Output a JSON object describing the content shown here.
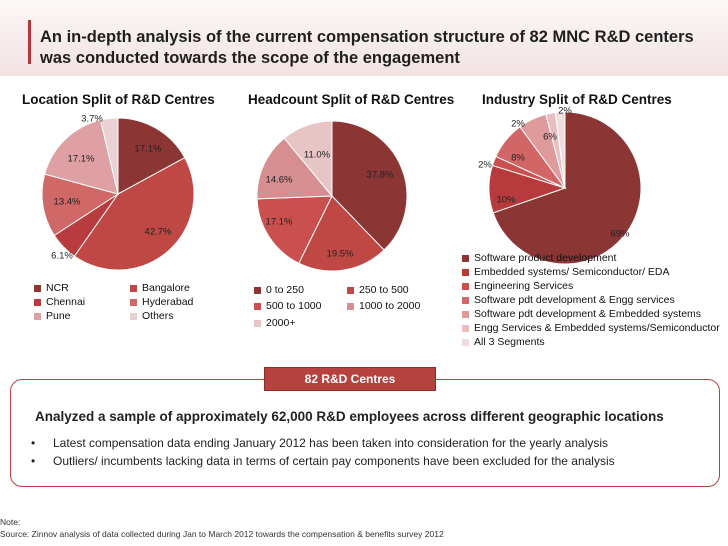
{
  "title": "An in-depth analysis of the current compensation structure of 82 MNC R&D centers was conducted towards the scope of the engagement",
  "chart_data": [
    {
      "type": "pie",
      "title": "Location Split of R&D Centres",
      "series": [
        {
          "name": "NCR",
          "value": 17.1,
          "label": "17.1%",
          "color": "#8b3535"
        },
        {
          "name": "Bangalore",
          "value": 42.7,
          "label": "42.7%",
          "color": "#bf4845"
        },
        {
          "name": "Chennai",
          "value": 6.1,
          "label": "6.1%",
          "color": "#b83b3f"
        },
        {
          "name": "Hyderabad",
          "value": 13.4,
          "label": "13.4%",
          "color": "#d06867"
        },
        {
          "name": "Pune",
          "value": 17.1,
          "label": "17.1%",
          "color": "#dfa0a4"
        },
        {
          "name": "Others",
          "value": 3.7,
          "label": "3.7%",
          "color": "#ebd1d3"
        }
      ]
    },
    {
      "type": "pie",
      "title": "Headcount Split of R&D Centres",
      "series": [
        {
          "name": "0 to 250",
          "value": 37.8,
          "label": "37.8%",
          "color": "#8b3535"
        },
        {
          "name": "250 to 500",
          "value": 19.5,
          "label": "19.5%",
          "color": "#bf4845"
        },
        {
          "name": "500 to 1000",
          "value": 17.1,
          "label": "17.1%",
          "color": "#c9504f"
        },
        {
          "name": "1000 to 2000",
          "value": 14.6,
          "label": "14.6%",
          "color": "#d78e90"
        },
        {
          "name": "2000+",
          "value": 11.0,
          "label": "11.0%",
          "color": "#e7c4c6"
        }
      ]
    },
    {
      "type": "pie",
      "title": "Industry Split of R&D Centres",
      "series": [
        {
          "name": "Software product development",
          "value": 69,
          "label": "69%",
          "color": "#8b3535"
        },
        {
          "name": "Embedded systems/ Semiconductor/ EDA",
          "value": 10,
          "label": "10%",
          "color": "#b73b3c"
        },
        {
          "name": "Engineering Services",
          "value": 2,
          "label": "2%",
          "color": "#c9504f"
        },
        {
          "name": "Software pdt development & Engg services",
          "value": 8,
          "label": "8%",
          "color": "#d26566"
        },
        {
          "name": "Software pdt development & Embedded systems",
          "value": 6,
          "label": "6%",
          "color": "#df9a9c"
        },
        {
          "name": "Engg Services & Embedded systems/Semiconductor",
          "value": 2,
          "label": "2%",
          "color": "#e7bfc1"
        },
        {
          "name": "All 3 Segments",
          "value": 2,
          "label": "2%",
          "color": "#f0dcdd"
        }
      ]
    }
  ],
  "center_label": "82 R&D Centres",
  "summary": {
    "headline": "Analyzed a sample of approximately 62,000 R&D employees across different geographic locations",
    "bullets": [
      "Latest compensation data ending  January 2012 has been taken into consideration for the yearly analysis",
      "Outliers/ incumbents lacking data in terms of certain pay components have been excluded for the analysis"
    ],
    "bullet_symbol": "•"
  },
  "note": {
    "line1": "Note:",
    "line2": "Source: Zinnov analysis of data collected during Jan to March 2012 towards the compensation & benefits survey 2012"
  }
}
